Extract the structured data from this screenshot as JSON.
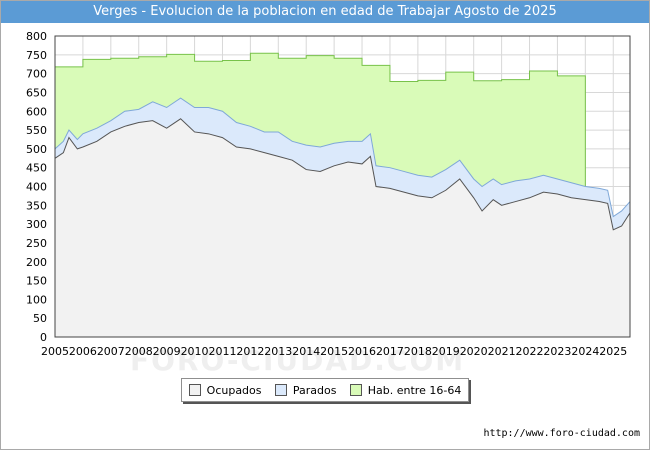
{
  "title": "Verges - Evolucion de la poblacion en edad de Trabajar Agosto de 2025",
  "footer": "http://www.foro-ciudad.com",
  "watermark": "FORO-CIUDAD.COM",
  "legend": {
    "items": [
      {
        "label": "Ocupados",
        "color": "#f2f2f2"
      },
      {
        "label": "Parados",
        "color": "#dbe9fb"
      },
      {
        "label": "Hab. entre 16-64",
        "color": "#d9fbb8"
      }
    ]
  },
  "colors": {
    "hab_fill": "#d9fbb8",
    "hab_line": "#78c24a",
    "parados_fill": "#dbe9fb",
    "parados_line": "#7fa8d8",
    "ocupados_fill": "#f2f2f2",
    "ocupados_line": "#555555",
    "grid": "#d8d8d8"
  },
  "chart_data": {
    "type": "area",
    "title": "Verges - Evolucion de la poblacion en edad de Trabajar Agosto de 2025",
    "xlim": [
      2005,
      2025.6
    ],
    "ylim": [
      0,
      800
    ],
    "x_ticks": [
      2005,
      2006,
      2007,
      2008,
      2009,
      2010,
      2011,
      2012,
      2013,
      2014,
      2015,
      2016,
      2017,
      2018,
      2019,
      2020,
      2021,
      2022,
      2023,
      2024,
      2025
    ],
    "y_ticks": [
      0,
      50,
      100,
      150,
      200,
      250,
      300,
      350,
      400,
      450,
      500,
      550,
      600,
      650,
      700,
      750,
      800
    ],
    "grid": true,
    "legend_position": "bottom",
    "hab_16_64": [
      [
        2005,
        718
      ],
      [
        2006,
        738
      ],
      [
        2007,
        741
      ],
      [
        2008,
        745
      ],
      [
        2009,
        751
      ],
      [
        2010,
        733
      ],
      [
        2011,
        735
      ],
      [
        2012,
        754
      ],
      [
        2013,
        741
      ],
      [
        2014,
        748
      ],
      [
        2015,
        741
      ],
      [
        2016,
        722
      ],
      [
        2017,
        679
      ],
      [
        2018,
        682
      ],
      [
        2019,
        704
      ],
      [
        2020,
        681
      ],
      [
        2021,
        684
      ],
      [
        2022,
        707
      ],
      [
        2023,
        694
      ],
      [
        2024,
        null
      ]
    ],
    "x": [
      2005.0,
      2005.3,
      2005.5,
      2005.8,
      2006.0,
      2006.5,
      2007.0,
      2007.5,
      2008.0,
      2008.5,
      2009.0,
      2009.5,
      2010.0,
      2010.5,
      2011.0,
      2011.5,
      2012.0,
      2012.5,
      2013.0,
      2013.5,
      2014.0,
      2014.5,
      2015.0,
      2015.5,
      2016.0,
      2016.3,
      2016.5,
      2017.0,
      2017.5,
      2018.0,
      2018.5,
      2019.0,
      2019.5,
      2020.0,
      2020.3,
      2020.7,
      2021.0,
      2021.5,
      2022.0,
      2022.5,
      2023.0,
      2023.5,
      2024.0,
      2024.5,
      2024.8,
      2025.0,
      2025.3,
      2025.6
    ],
    "series": [
      {
        "name": "Parados",
        "values": [
          500,
          520,
          550,
          525,
          540,
          555,
          575,
          600,
          605,
          625,
          610,
          635,
          610,
          610,
          600,
          570,
          560,
          545,
          545,
          520,
          510,
          505,
          515,
          520,
          520,
          540,
          455,
          450,
          440,
          430,
          425,
          445,
          470,
          420,
          400,
          420,
          405,
          415,
          420,
          430,
          420,
          410,
          400,
          395,
          390,
          320,
          335,
          360
        ]
      },
      {
        "name": "Ocupados",
        "values": [
          475,
          490,
          530,
          500,
          505,
          520,
          545,
          560,
          570,
          575,
          555,
          580,
          545,
          540,
          530,
          505,
          500,
          490,
          480,
          470,
          445,
          440,
          455,
          465,
          460,
          480,
          400,
          395,
          385,
          375,
          370,
          390,
          420,
          370,
          335,
          365,
          350,
          360,
          370,
          385,
          380,
          370,
          365,
          360,
          355,
          285,
          295,
          330
        ]
      }
    ]
  }
}
